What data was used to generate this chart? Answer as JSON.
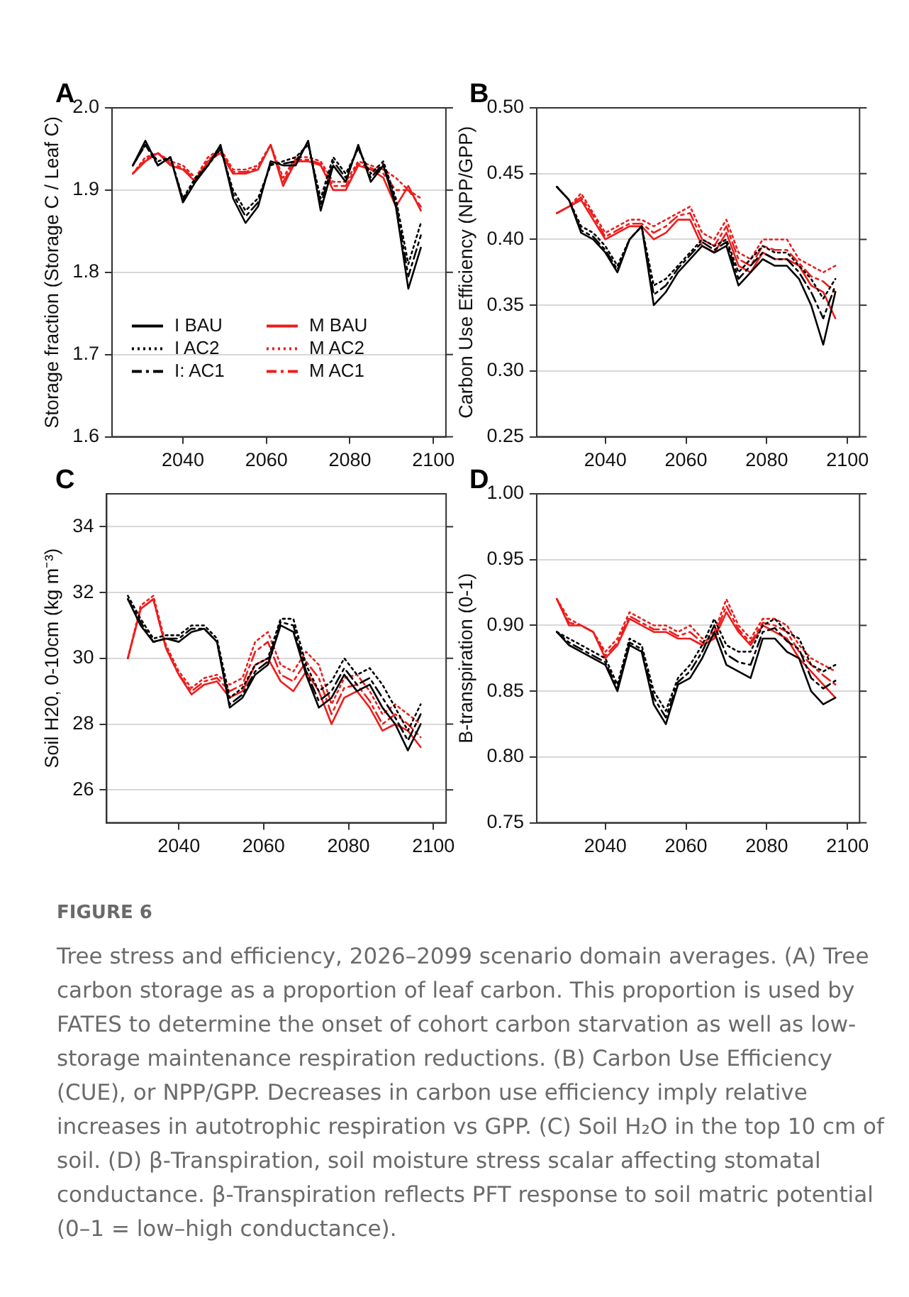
{
  "chart_data": [
    {
      "type": "line",
      "title": "A",
      "ylabel": "Storage fraction (Storage C / Leaf C)",
      "xlim": [
        2023,
        2103
      ],
      "xticks": [
        2040,
        2060,
        2080,
        2100
      ],
      "ylim": [
        1.6,
        2.0
      ],
      "yticks": [
        {
          "value": 1.6,
          "label": "1.6"
        },
        {
          "value": 1.7,
          "label": "1.7"
        },
        {
          "value": 1.8,
          "label": "1.8"
        },
        {
          "value": 1.9,
          "label": "1.9"
        },
        {
          "value": 2.0,
          "label": "2.0"
        }
      ],
      "grid": "y",
      "legend": "bottom left",
      "x": [
        2028,
        2031,
        2034,
        2037,
        2040,
        2043,
        2046,
        2049,
        2052,
        2055,
        2058,
        2061,
        2064,
        2067,
        2070,
        2073,
        2076,
        2079,
        2082,
        2085,
        2088,
        2091,
        2094,
        2097
      ],
      "series": [
        {
          "name": "I BAU",
          "color": "#000000",
          "line_style": "solid",
          "values": [
            1.93,
            1.96,
            1.93,
            1.94,
            1.885,
            1.91,
            1.93,
            1.955,
            1.89,
            1.86,
            1.88,
            1.935,
            1.93,
            1.93,
            1.96,
            1.875,
            1.93,
            1.91,
            1.955,
            1.91,
            1.93,
            1.88,
            1.78,
            1.83
          ]
        },
        {
          "name": "I AC2",
          "color": "#000000",
          "line_style": "dotted",
          "values": [
            1.93,
            1.955,
            1.935,
            1.94,
            1.89,
            1.915,
            1.93,
            1.95,
            1.9,
            1.875,
            1.89,
            1.93,
            1.935,
            1.94,
            1.955,
            1.89,
            1.94,
            1.92,
            1.95,
            1.92,
            1.935,
            1.89,
            1.81,
            1.86
          ]
        },
        {
          "name": "I: AC1",
          "color": "#000000",
          "line_style": "dashed",
          "values": [
            1.93,
            1.955,
            1.93,
            1.94,
            1.888,
            1.912,
            1.93,
            1.952,
            1.895,
            1.868,
            1.885,
            1.932,
            1.932,
            1.935,
            1.958,
            1.882,
            1.935,
            1.915,
            1.952,
            1.915,
            1.932,
            1.885,
            1.795,
            1.845
          ]
        },
        {
          "name": "M BAU",
          "color": "#ee1c1c",
          "line_style": "solid",
          "values": [
            1.92,
            1.935,
            1.945,
            1.93,
            1.925,
            1.91,
            1.935,
            1.945,
            1.92,
            1.92,
            1.925,
            1.955,
            1.905,
            1.935,
            1.935,
            1.93,
            1.9,
            1.9,
            1.93,
            1.925,
            1.915,
            1.88,
            1.905,
            1.875
          ]
        },
        {
          "name": "M AC2",
          "color": "#ee1c1c",
          "line_style": "dotted",
          "values": [
            1.92,
            1.94,
            1.945,
            1.935,
            1.93,
            1.915,
            1.94,
            1.95,
            1.925,
            1.925,
            1.93,
            1.955,
            1.915,
            1.94,
            1.94,
            1.935,
            1.91,
            1.91,
            1.935,
            1.93,
            1.925,
            1.915,
            1.9,
            1.89
          ]
        },
        {
          "name": "M AC1",
          "color": "#ee1c1c",
          "line_style": "dashed",
          "values": [
            1.92,
            1.937,
            1.945,
            1.932,
            1.927,
            1.912,
            1.937,
            1.947,
            1.922,
            1.922,
            1.927,
            1.955,
            1.91,
            1.937,
            1.937,
            1.932,
            1.905,
            1.905,
            1.932,
            1.927,
            1.92,
            1.9,
            1.9,
            1.88
          ]
        }
      ]
    },
    {
      "type": "line",
      "title": "B",
      "ylabel": "Carbon Use Efficiency (NPP/GPP)",
      "xlim": [
        2023,
        2103
      ],
      "xticks": [
        2040,
        2060,
        2080,
        2100
      ],
      "ylim": [
        0.25,
        0.5
      ],
      "yticks": [
        {
          "value": 0.25,
          "label": "0.25"
        },
        {
          "value": 0.3,
          "label": "0.30"
        },
        {
          "value": 0.35,
          "label": "0.35"
        },
        {
          "value": 0.4,
          "label": "0.40"
        },
        {
          "value": 0.45,
          "label": "0.45"
        },
        {
          "value": 0.5,
          "label": "0.50"
        }
      ],
      "grid": "y",
      "x": [
        2028,
        2031,
        2034,
        2037,
        2040,
        2043,
        2046,
        2049,
        2052,
        2055,
        2058,
        2061,
        2064,
        2067,
        2070,
        2073,
        2076,
        2079,
        2082,
        2085,
        2088,
        2091,
        2094,
        2097
      ],
      "series": [
        {
          "color": "#000000",
          "line_style": "solid",
          "values": [
            0.44,
            0.43,
            0.405,
            0.4,
            0.39,
            0.375,
            0.4,
            0.41,
            0.35,
            0.36,
            0.375,
            0.385,
            0.395,
            0.39,
            0.395,
            0.365,
            0.375,
            0.385,
            0.38,
            0.38,
            0.37,
            0.35,
            0.32,
            0.36
          ]
        },
        {
          "color": "#000000",
          "line_style": "dotted",
          "values": [
            0.44,
            0.43,
            0.41,
            0.405,
            0.395,
            0.38,
            0.4,
            0.41,
            0.365,
            0.37,
            0.38,
            0.39,
            0.4,
            0.395,
            0.4,
            0.375,
            0.385,
            0.395,
            0.39,
            0.39,
            0.38,
            0.37,
            0.355,
            0.37
          ]
        },
        {
          "color": "#000000",
          "line_style": "dashed",
          "values": [
            0.44,
            0.43,
            0.407,
            0.402,
            0.392,
            0.377,
            0.4,
            0.41,
            0.358,
            0.365,
            0.378,
            0.388,
            0.398,
            0.392,
            0.398,
            0.37,
            0.38,
            0.39,
            0.385,
            0.385,
            0.375,
            0.36,
            0.34,
            0.365
          ]
        },
        {
          "color": "#ee1c1c",
          "line_style": "solid",
          "values": [
            0.42,
            0.425,
            0.43,
            0.415,
            0.4,
            0.405,
            0.41,
            0.41,
            0.4,
            0.405,
            0.415,
            0.415,
            0.395,
            0.39,
            0.405,
            0.38,
            0.375,
            0.39,
            0.385,
            0.385,
            0.38,
            0.365,
            0.36,
            0.34
          ]
        },
        {
          "color": "#ee1c1c",
          "line_style": "dotted",
          "values": [
            0.42,
            0.425,
            0.435,
            0.42,
            0.405,
            0.41,
            0.415,
            0.415,
            0.41,
            0.415,
            0.42,
            0.425,
            0.405,
            0.4,
            0.415,
            0.39,
            0.385,
            0.4,
            0.4,
            0.4,
            0.385,
            0.38,
            0.375,
            0.38
          ]
        },
        {
          "color": "#ee1c1c",
          "line_style": "dashed",
          "values": [
            0.42,
            0.425,
            0.432,
            0.418,
            0.402,
            0.407,
            0.412,
            0.412,
            0.405,
            0.41,
            0.418,
            0.42,
            0.4,
            0.395,
            0.41,
            0.385,
            0.38,
            0.395,
            0.392,
            0.392,
            0.382,
            0.372,
            0.368,
            0.36
          ]
        }
      ]
    },
    {
      "type": "line",
      "title": "C",
      "ylabel": "Soil H20, 0-10cm (kg m⁻³)",
      "xlim": [
        2023,
        2103
      ],
      "xticks": [
        2040,
        2060,
        2080,
        2100
      ],
      "ylim": [
        25,
        35
      ],
      "yticks": [
        26,
        28,
        30,
        32,
        34
      ],
      "grid": "y",
      "x": [
        2028,
        2031,
        2034,
        2037,
        2040,
        2043,
        2046,
        2049,
        2052,
        2055,
        2058,
        2061,
        2064,
        2067,
        2070,
        2073,
        2076,
        2079,
        2082,
        2085,
        2088,
        2091,
        2094,
        2097
      ],
      "series": [
        {
          "color": "#000000",
          "line_style": "solid",
          "values": [
            31.8,
            31.0,
            30.5,
            30.6,
            30.5,
            30.8,
            30.9,
            30.5,
            28.5,
            28.8,
            29.5,
            29.8,
            31.0,
            30.8,
            29.5,
            28.5,
            28.8,
            29.5,
            29.0,
            29.2,
            28.5,
            28.0,
            27.2,
            28.0
          ]
        },
        {
          "color": "#000000",
          "line_style": "dotted",
          "values": [
            31.9,
            31.2,
            30.6,
            30.7,
            30.7,
            31.0,
            31.0,
            30.6,
            28.8,
            29.1,
            29.8,
            30.0,
            31.2,
            31.2,
            29.8,
            29.0,
            29.3,
            30.0,
            29.5,
            29.7,
            29.2,
            28.5,
            27.8,
            28.6
          ]
        },
        {
          "color": "#000000",
          "line_style": "dashed",
          "values": [
            31.8,
            31.1,
            30.5,
            30.6,
            30.6,
            30.9,
            30.9,
            30.5,
            28.6,
            28.9,
            29.6,
            29.9,
            31.1,
            31.0,
            29.6,
            28.7,
            29.0,
            29.7,
            29.2,
            29.4,
            28.8,
            28.2,
            27.5,
            28.3
          ]
        },
        {
          "color": "#ee1c1c",
          "line_style": "solid",
          "values": [
            30.0,
            31.5,
            31.8,
            30.3,
            29.5,
            28.9,
            29.2,
            29.3,
            28.8,
            29.0,
            29.8,
            30.0,
            29.3,
            29.0,
            29.6,
            29.0,
            28.0,
            28.8,
            29.0,
            28.5,
            27.8,
            28.0,
            27.8,
            27.3
          ]
        },
        {
          "color": "#ee1c1c",
          "line_style": "dotted",
          "values": [
            30.0,
            31.6,
            31.9,
            30.4,
            29.6,
            29.1,
            29.4,
            29.5,
            29.2,
            29.4,
            30.5,
            30.8,
            29.8,
            29.6,
            30.2,
            29.8,
            28.6,
            29.4,
            29.5,
            29.0,
            28.3,
            28.6,
            28.3,
            28.0
          ]
        },
        {
          "color": "#ee1c1c",
          "line_style": "dashed",
          "values": [
            30.0,
            31.5,
            31.8,
            30.3,
            29.5,
            29.0,
            29.3,
            29.4,
            29.0,
            29.2,
            30.2,
            30.5,
            29.5,
            29.3,
            29.9,
            29.4,
            28.3,
            29.1,
            29.2,
            28.7,
            28.0,
            28.3,
            28.0,
            27.6
          ]
        }
      ]
    },
    {
      "type": "line",
      "title": "D",
      "ylabel": "B-transpiration (0-1)",
      "xlim": [
        2023,
        2103
      ],
      "xticks": [
        2040,
        2060,
        2080,
        2100
      ],
      "ylim": [
        0.75,
        1.0
      ],
      "yticks": [
        {
          "value": 0.75,
          "label": "0.75"
        },
        {
          "value": 0.8,
          "label": "0.80"
        },
        {
          "value": 0.85,
          "label": "0.85"
        },
        {
          "value": 0.9,
          "label": "0.90"
        },
        {
          "value": 0.95,
          "label": "0.95"
        },
        {
          "value": 1.0,
          "label": "1.00"
        }
      ],
      "grid": "y",
      "annotations": [
        "FIGURE 6",
        "Tree stress and efficiency, 2026–2099 scenario domain averages. (A) Tree carbon storage as a proportion of leaf carbon. This proportion is used by FATES to determine the onset of cohort carbon starvation as well as low-storage maintenance respiration reductions. (B) Carbon Use Efficiency (CUE), or NPP/GPP. Decreases in carbon use efficiency imply relative increases in autotrophic respiration vs GPP. (C) Soil H₂O in the top 10 cm of soil. (D) β-Transpiration, soil moisture stress scalar affecting stomatal conductance. β-Transpiration reflects PFT response to soil matric potential (0–1 = low–high conductance)."
      ],
      "x": [
        2028,
        2031,
        2034,
        2037,
        2040,
        2043,
        2046,
        2049,
        2052,
        2055,
        2058,
        2061,
        2064,
        2067,
        2070,
        2073,
        2076,
        2079,
        2082,
        2085,
        2088,
        2091,
        2094,
        2097
      ],
      "series": [
        {
          "color": "#000000",
          "line_style": "solid",
          "values": [
            0.895,
            0.885,
            0.88,
            0.875,
            0.87,
            0.85,
            0.885,
            0.88,
            0.84,
            0.825,
            0.855,
            0.86,
            0.875,
            0.895,
            0.87,
            0.865,
            0.86,
            0.89,
            0.89,
            0.88,
            0.875,
            0.85,
            0.84,
            0.845
          ]
        },
        {
          "color": "#000000",
          "line_style": "dotted",
          "values": [
            0.895,
            0.89,
            0.885,
            0.88,
            0.875,
            0.855,
            0.89,
            0.885,
            0.85,
            0.835,
            0.86,
            0.87,
            0.885,
            0.905,
            0.885,
            0.88,
            0.88,
            0.9,
            0.905,
            0.895,
            0.89,
            0.87,
            0.865,
            0.87
          ]
        },
        {
          "color": "#000000",
          "line_style": "dashed",
          "values": [
            0.895,
            0.887,
            0.882,
            0.877,
            0.872,
            0.852,
            0.887,
            0.882,
            0.845,
            0.83,
            0.857,
            0.865,
            0.88,
            0.9,
            0.878,
            0.872,
            0.87,
            0.895,
            0.898,
            0.888,
            0.882,
            0.86,
            0.852,
            0.858
          ]
        },
        {
          "color": "#ee1c1c",
          "line_style": "solid",
          "values": [
            0.92,
            0.9,
            0.9,
            0.895,
            0.875,
            0.885,
            0.905,
            0.9,
            0.895,
            0.895,
            0.89,
            0.89,
            0.885,
            0.89,
            0.91,
            0.895,
            0.885,
            0.9,
            0.895,
            0.89,
            0.875,
            0.865,
            0.855,
            0.845
          ]
        },
        {
          "color": "#ee1c1c",
          "line_style": "dotted",
          "values": [
            0.92,
            0.905,
            0.9,
            0.895,
            0.88,
            0.89,
            0.91,
            0.905,
            0.9,
            0.9,
            0.895,
            0.9,
            0.89,
            0.895,
            0.92,
            0.9,
            0.89,
            0.905,
            0.905,
            0.9,
            0.885,
            0.875,
            0.87,
            0.865
          ]
        },
        {
          "color": "#ee1c1c",
          "line_style": "dashed",
          "values": [
            0.92,
            0.902,
            0.9,
            0.895,
            0.877,
            0.887,
            0.907,
            0.902,
            0.897,
            0.897,
            0.892,
            0.895,
            0.887,
            0.892,
            0.915,
            0.897,
            0.887,
            0.902,
            0.9,
            0.895,
            0.88,
            0.87,
            0.862,
            0.855
          ]
        }
      ]
    }
  ]
}
